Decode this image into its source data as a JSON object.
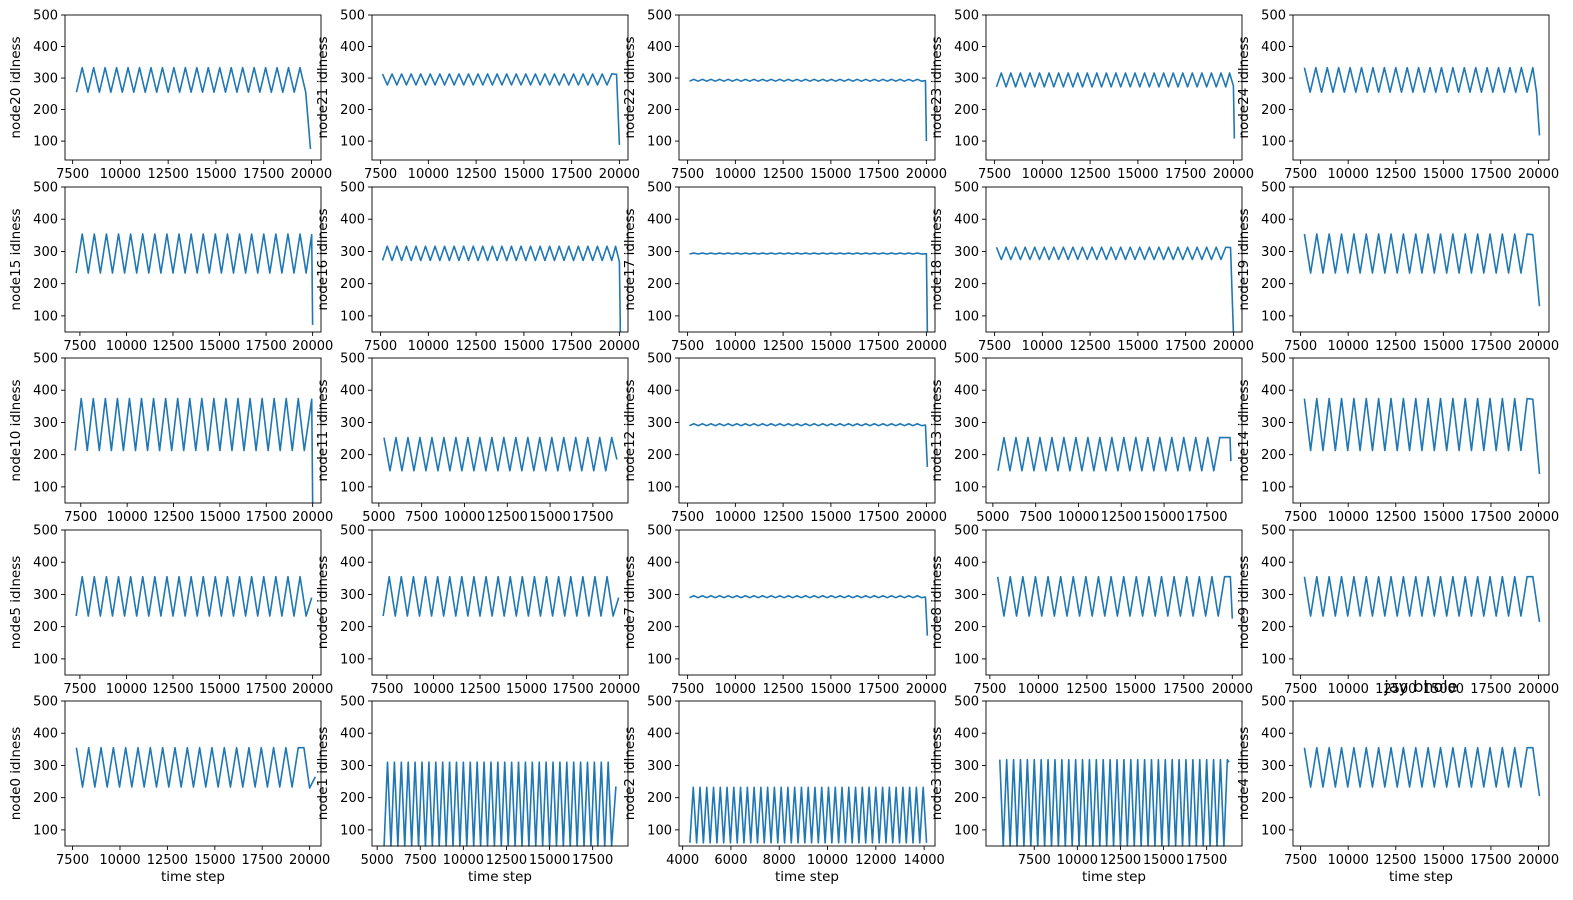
{
  "figure": {
    "overlay_title": "jay bhole"
  },
  "chart_data": [
    {
      "node": "node20",
      "type": "line",
      "ylabel": "node20 idlness",
      "xlabel": "",
      "x_start": 7700,
      "period": 600,
      "hi": 333,
      "lo": 255,
      "start_phase": "lo",
      "x_end": 19700,
      "end": [
        [
          19950,
          75
        ]
      ],
      "xlim": [
        7100,
        20500
      ],
      "xticks": [
        7500,
        10000,
        12500,
        15000,
        17500,
        20000
      ],
      "yticks": [
        100,
        200,
        300,
        400,
        500
      ],
      "ylim": [
        40,
        500
      ]
    },
    {
      "node": "node21",
      "type": "line",
      "ylabel": "node21 idlness",
      "xlabel": "",
      "x_start": 7600,
      "period": 500,
      "hi": 313,
      "lo": 278,
      "start_phase": "hi",
      "x_end": 19600,
      "end": [
        [
          19850,
          312
        ],
        [
          20000,
          88
        ]
      ],
      "xlim": [
        7050,
        20450
      ],
      "xticks": [
        7500,
        10000,
        12500,
        15000,
        17500,
        20000
      ],
      "yticks": [
        100,
        200,
        300,
        400,
        500
      ],
      "ylim": [
        40,
        500
      ]
    },
    {
      "node": "node22",
      "type": "line",
      "ylabel": "node22 idlness",
      "xlabel": "",
      "x_start": 7600,
      "period": 450,
      "hi": 296,
      "lo": 290,
      "start_phase": "lo",
      "x_end": 19800,
      "end": [
        [
          19950,
          292
        ],
        [
          20000,
          100
        ]
      ],
      "xlim": [
        7050,
        20450
      ],
      "xticks": [
        7500,
        10000,
        12500,
        15000,
        17500,
        20000
      ],
      "yticks": [
        100,
        200,
        300,
        400,
        500
      ],
      "ylim": [
        40,
        500
      ]
    },
    {
      "node": "node23",
      "type": "line",
      "ylabel": "node23 idlness",
      "xlabel": "",
      "x_start": 7600,
      "period": 500,
      "hi": 316,
      "lo": 272,
      "start_phase": "lo",
      "x_end": 19600,
      "end": [
        [
          19800,
          316
        ],
        [
          20000,
          275
        ],
        [
          20050,
          108
        ]
      ],
      "xlim": [
        7050,
        20450
      ],
      "xticks": [
        7500,
        10000,
        12500,
        15000,
        17500,
        20000
      ],
      "yticks": [
        100,
        200,
        300,
        400,
        500
      ],
      "ylim": [
        40,
        500
      ]
    },
    {
      "node": "node24",
      "type": "line",
      "ylabel": "node24 idlness",
      "xlabel": "",
      "x_start": 7700,
      "period": 600,
      "hi": 333,
      "lo": 255,
      "start_phase": "hi",
      "x_end": 19700,
      "end": [
        [
          19900,
          252
        ],
        [
          20050,
          118
        ]
      ],
      "xlim": [
        7100,
        20550
      ],
      "xticks": [
        7500,
        10000,
        12500,
        15000,
        17500,
        20000
      ],
      "yticks": [
        100,
        200,
        300,
        400,
        500
      ],
      "ylim": [
        40,
        500
      ]
    },
    {
      "node": "node15",
      "type": "line",
      "ylabel": "node15 idlness",
      "xlabel": "",
      "x_start": 7300,
      "period": 650,
      "hi": 354,
      "lo": 233,
      "start_phase": "lo",
      "x_end": 19650,
      "end": [
        [
          19950,
          352
        ],
        [
          20000,
          72
        ]
      ],
      "xlim": [
        6700,
        20450
      ],
      "xticks": [
        7500,
        10000,
        12500,
        15000,
        17500,
        20000
      ],
      "yticks": [
        100,
        200,
        300,
        400,
        500
      ],
      "ylim": [
        50,
        500
      ]
    },
    {
      "node": "node16",
      "type": "line",
      "ylabel": "node16 idlness",
      "xlabel": "",
      "x_start": 7600,
      "period": 500,
      "hi": 316,
      "lo": 272,
      "start_phase": "lo",
      "x_end": 19600,
      "end": [
        [
          19800,
          316
        ],
        [
          20000,
          268
        ],
        [
          20050,
          50
        ]
      ],
      "xlim": [
        7050,
        20450
      ],
      "xticks": [
        7500,
        10000,
        12500,
        15000,
        17500,
        20000
      ],
      "yticks": [
        100,
        200,
        300,
        400,
        500
      ],
      "ylim": [
        50,
        500
      ]
    },
    {
      "node": "node17",
      "type": "line",
      "ylabel": "node17 idlness",
      "xlabel": "",
      "x_start": 7600,
      "period": 450,
      "hi": 295,
      "lo": 292,
      "start_phase": "lo",
      "x_end": 19800,
      "end": [
        [
          20000,
          293
        ],
        [
          20050,
          50
        ]
      ],
      "xlim": [
        7050,
        20450
      ],
      "xticks": [
        7500,
        10000,
        12500,
        15000,
        17500,
        20000
      ],
      "yticks": [
        100,
        200,
        300,
        400,
        500
      ],
      "ylim": [
        50,
        500
      ]
    },
    {
      "node": "node18",
      "type": "line",
      "ylabel": "node18 idlness",
      "xlabel": "",
      "x_start": 7600,
      "period": 500,
      "hi": 313,
      "lo": 275,
      "start_phase": "hi",
      "x_end": 19600,
      "end": [
        [
          19850,
          312
        ],
        [
          20000,
          50
        ]
      ],
      "xlim": [
        7050,
        20450
      ],
      "xticks": [
        7500,
        10000,
        12500,
        15000,
        17500,
        20000
      ],
      "yticks": [
        100,
        200,
        300,
        400,
        500
      ],
      "ylim": [
        50,
        500
      ]
    },
    {
      "node": "node19",
      "type": "line",
      "ylabel": "node19 idlness",
      "xlabel": "",
      "x_start": 7700,
      "period": 650,
      "hi": 354,
      "lo": 233,
      "start_phase": "hi",
      "x_end": 19400,
      "end": [
        [
          19700,
          352
        ],
        [
          20050,
          130
        ]
      ],
      "xlim": [
        7100,
        20550
      ],
      "xticks": [
        7500,
        10000,
        12500,
        15000,
        17500,
        20000
      ],
      "yticks": [
        100,
        200,
        300,
        400,
        500
      ],
      "ylim": [
        50,
        500
      ]
    },
    {
      "node": "node10",
      "type": "line",
      "ylabel": "node10 idlness",
      "xlabel": "",
      "x_start": 7200,
      "period": 650,
      "hi": 374,
      "lo": 213,
      "start_phase": "lo",
      "x_end": 19550,
      "end": [
        [
          19950,
          372
        ],
        [
          20000,
          50
        ]
      ],
      "xlim": [
        6650,
        20450
      ],
      "xticks": [
        7500,
        10000,
        12500,
        15000,
        17500,
        20000
      ],
      "yticks": [
        100,
        200,
        300,
        400,
        500
      ],
      "ylim": [
        50,
        500
      ]
    },
    {
      "node": "node11",
      "type": "line",
      "ylabel": "node11 idlness",
      "xlabel": "",
      "x_start": 5300,
      "period": 700,
      "hi": 253,
      "lo": 150,
      "start_phase": "hi",
      "x_end": 18600,
      "end": [
        [
          18900,
          185
        ]
      ],
      "xlim": [
        4600,
        19550
      ],
      "xticks": [
        5000,
        7500,
        10000,
        12500,
        15000,
        17500
      ],
      "yticks": [
        100,
        200,
        300,
        400,
        500
      ],
      "ylim": [
        50,
        500
      ]
    },
    {
      "node": "node12",
      "type": "line",
      "ylabel": "node12 idlness",
      "xlabel": "",
      "x_start": 7600,
      "period": 450,
      "hi": 296,
      "lo": 290,
      "start_phase": "lo",
      "x_end": 19800,
      "end": [
        [
          19950,
          292
        ],
        [
          20050,
          162
        ]
      ],
      "xlim": [
        7050,
        20450
      ],
      "xticks": [
        7500,
        10000,
        12500,
        15000,
        17500,
        20000
      ],
      "yticks": [
        100,
        200,
        300,
        400,
        500
      ],
      "ylim": [
        50,
        500
      ]
    },
    {
      "node": "node13",
      "type": "line",
      "ylabel": "node13 idlness",
      "xlabel": "",
      "x_start": 5300,
      "period": 700,
      "hi": 253,
      "lo": 150,
      "start_phase": "lo",
      "x_end": 18550,
      "end": [
        [
          18850,
          253
        ],
        [
          18900,
          180
        ]
      ],
      "xlim": [
        4600,
        19550
      ],
      "xticks": [
        5000,
        7500,
        10000,
        12500,
        15000,
        17500
      ],
      "yticks": [
        100,
        200,
        300,
        400,
        500
      ],
      "ylim": [
        50,
        500
      ]
    },
    {
      "node": "node14",
      "type": "line",
      "ylabel": "node14 idlness",
      "xlabel": "",
      "x_start": 7700,
      "period": 650,
      "hi": 374,
      "lo": 213,
      "start_phase": "hi",
      "x_end": 19400,
      "end": [
        [
          19700,
          372
        ],
        [
          20050,
          140
        ]
      ],
      "xlim": [
        7100,
        20550
      ],
      "xticks": [
        7500,
        10000,
        12500,
        15000,
        17500,
        20000
      ],
      "yticks": [
        100,
        200,
        300,
        400,
        500
      ],
      "ylim": [
        50,
        500
      ]
    },
    {
      "node": "node5",
      "type": "line",
      "ylabel": "node5 idlness",
      "xlabel": "",
      "x_start": 7300,
      "period": 650,
      "hi": 355,
      "lo": 233,
      "start_phase": "lo",
      "x_end": 19650,
      "end": [
        [
          19950,
          290
        ]
      ],
      "xlim": [
        6700,
        20450
      ],
      "xticks": [
        7500,
        10000,
        12500,
        15000,
        17500,
        20000
      ],
      "yticks": [
        100,
        200,
        300,
        400,
        500
      ],
      "ylim": [
        50,
        500
      ]
    },
    {
      "node": "node6",
      "type": "line",
      "ylabel": "node6 idlness",
      "xlabel": "",
      "x_start": 7300,
      "period": 650,
      "hi": 355,
      "lo": 233,
      "start_phase": "lo",
      "x_end": 19650,
      "end": [
        [
          19950,
          290
        ]
      ],
      "xlim": [
        6700,
        20450
      ],
      "xticks": [
        7500,
        10000,
        12500,
        15000,
        17500,
        20000
      ],
      "yticks": [
        100,
        200,
        300,
        400,
        500
      ],
      "ylim": [
        50,
        500
      ]
    },
    {
      "node": "node7",
      "type": "line",
      "ylabel": "node7 idlness",
      "xlabel": "",
      "x_start": 7600,
      "period": 450,
      "hi": 296,
      "lo": 290,
      "start_phase": "lo",
      "x_end": 19800,
      "end": [
        [
          19950,
          292
        ],
        [
          20050,
          172
        ]
      ],
      "xlim": [
        7050,
        20450
      ],
      "xticks": [
        7500,
        10000,
        12500,
        15000,
        17500,
        20000
      ],
      "yticks": [
        100,
        200,
        300,
        400,
        500
      ],
      "ylim": [
        50,
        500
      ]
    },
    {
      "node": "node8",
      "type": "line",
      "ylabel": "node8 idlness",
      "xlabel": "",
      "x_start": 7900,
      "period": 650,
      "hi": 355,
      "lo": 233,
      "start_phase": "hi",
      "x_end": 19600,
      "end": [
        [
          19900,
          355
        ],
        [
          20000,
          225
        ]
      ],
      "xlim": [
        7300,
        20500
      ],
      "xticks": [
        7500,
        10000,
        12500,
        15000,
        17500,
        20000
      ],
      "yticks": [
        100,
        200,
        300,
        400,
        500
      ],
      "ylim": [
        50,
        500
      ]
    },
    {
      "node": "node9",
      "type": "line",
      "ylabel": "node9 idlness",
      "xlabel": "",
      "x_start": 7700,
      "period": 650,
      "hi": 355,
      "lo": 233,
      "start_phase": "hi",
      "x_end": 19400,
      "end": [
        [
          19700,
          355
        ],
        [
          20050,
          215
        ]
      ],
      "xlim": [
        7100,
        20550
      ],
      "xticks": [
        7500,
        10000,
        12500,
        15000,
        17500,
        20000
      ],
      "yticks": [
        100,
        200,
        300,
        400,
        500
      ],
      "ylim": [
        50,
        500
      ]
    },
    {
      "node": "node0",
      "type": "line",
      "ylabel": "node0 idlness",
      "xlabel": "time step",
      "x_start": 7700,
      "period": 650,
      "hi": 355,
      "lo": 233,
      "start_phase": "hi",
      "x_end": 19400,
      "end": [
        [
          19700,
          355
        ],
        [
          20000,
          230
        ],
        [
          20300,
          265
        ]
      ],
      "xlim": [
        7100,
        20600
      ],
      "xticks": [
        7500,
        10000,
        12500,
        15000,
        17500,
        20000
      ],
      "yticks": [
        100,
        200,
        300,
        400,
        500
      ],
      "ylim": [
        50,
        500
      ]
    },
    {
      "node": "node1",
      "type": "line",
      "ylabel": "node1 idlness",
      "xlabel": "time step",
      "x_start": 5400,
      "period": 400,
      "hi": 310,
      "lo": 50,
      "start_phase": "lo",
      "x_end": 18600,
      "end": [
        [
          18850,
          235
        ]
      ],
      "xlim": [
        4700,
        19550
      ],
      "xticks": [
        5000,
        7500,
        10000,
        12500,
        15000,
        17500
      ],
      "yticks": [
        100,
        200,
        300,
        400,
        500
      ],
      "ylim": [
        50,
        500
      ]
    },
    {
      "node": "node2",
      "type": "line",
      "ylabel": "node2 idlness",
      "xlabel": "time step",
      "x_start": 4300,
      "period": 280,
      "hi": 232,
      "lo": 60,
      "start_phase": "lo",
      "x_end": 14100,
      "end": [],
      "xlim": [
        3850,
        14450
      ],
      "xticks": [
        4000,
        6000,
        8000,
        10000,
        12000,
        14000
      ],
      "yticks": [
        100,
        200,
        300,
        400,
        500
      ],
      "ylim": [
        50,
        500
      ]
    },
    {
      "node": "node3",
      "type": "line",
      "ylabel": "node3 idlness",
      "xlabel": "time step",
      "x_start": 5500,
      "period": 400,
      "hi": 318,
      "lo": 50,
      "start_phase": "hi",
      "x_end": 18700,
      "end": [
        [
          18800,
          310
        ]
      ],
      "xlim": [
        4700,
        19550
      ],
      "xticks": [
        7500,
        10000,
        12500,
        15000,
        17500
      ],
      "yticks": [
        100,
        200,
        300,
        400,
        500
      ],
      "ylim": [
        50,
        500
      ]
    },
    {
      "node": "node4",
      "type": "line",
      "ylabel": "node4 idlness",
      "xlabel": "time step",
      "x_start": 7700,
      "period": 650,
      "hi": 355,
      "lo": 233,
      "start_phase": "hi",
      "x_end": 19400,
      "end": [
        [
          19700,
          355
        ],
        [
          20050,
          205
        ]
      ],
      "xlim": [
        7100,
        20550
      ],
      "xticks": [
        7500,
        10000,
        12500,
        15000,
        17500,
        20000
      ],
      "yticks": [
        100,
        200,
        300,
        400,
        500
      ],
      "ylim": [
        50,
        500
      ]
    }
  ]
}
